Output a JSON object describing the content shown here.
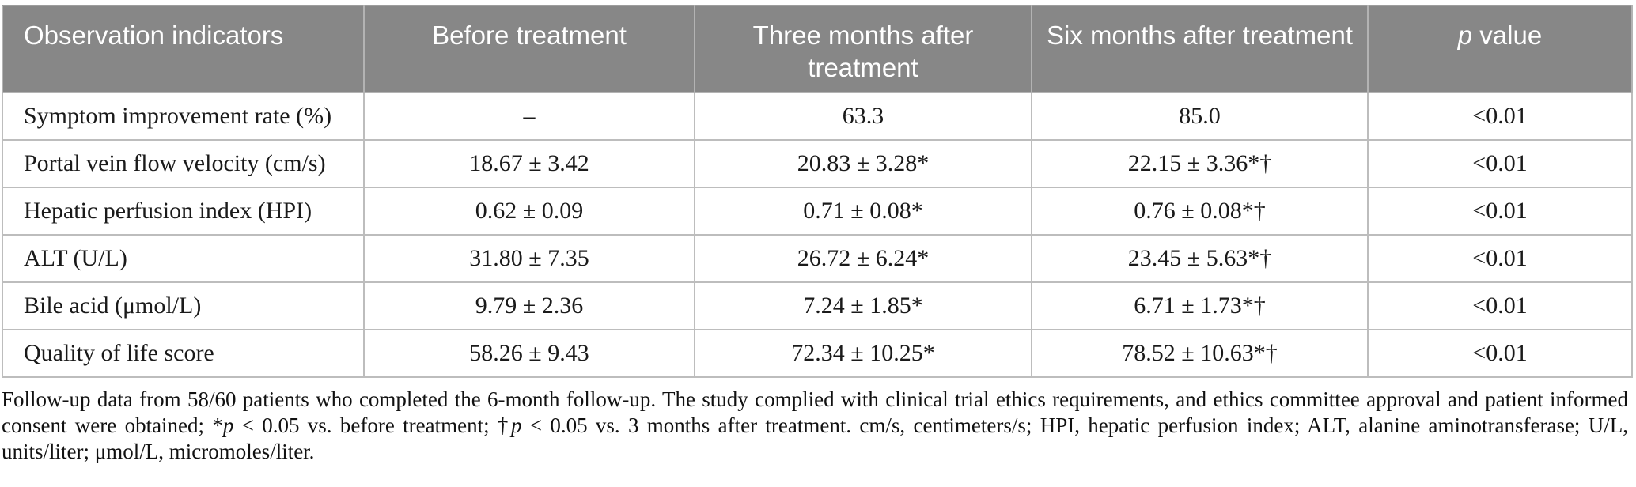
{
  "table": {
    "columns": [
      "Observation indicators",
      "Before treatment",
      "Three months after treatment",
      "Six months after treatment"
    ],
    "p_header": {
      "italic": "p",
      "rest": " value"
    },
    "rows": [
      {
        "cells": [
          "Symptom improvement rate (%)",
          "–",
          "63.3",
          "85.0",
          "<0.01"
        ]
      },
      {
        "cells": [
          "Portal vein flow velocity (cm/s)",
          "18.67 ± 3.42",
          "20.83 ± 3.28*",
          "22.15 ± 3.36*†",
          "<0.01"
        ]
      },
      {
        "cells": [
          "Hepatic perfusion index (HPI)",
          "0.62 ± 0.09",
          "0.71 ± 0.08*",
          "0.76 ± 0.08*†",
          "<0.01"
        ]
      },
      {
        "cells": [
          "ALT (U/L)",
          "31.80 ± 7.35",
          "26.72 ± 6.24*",
          "23.45 ± 5.63*†",
          "<0.01"
        ]
      },
      {
        "cells": [
          "Bile acid (μmol/L)",
          "9.79 ± 2.36",
          "7.24 ± 1.85*",
          "6.71 ± 1.73*†",
          "<0.01"
        ]
      },
      {
        "cells": [
          "Quality of life score",
          "58.26 ± 9.43",
          "72.34 ± 10.25*",
          "78.52 ± 10.63*†",
          "<0.01"
        ]
      }
    ]
  },
  "footnote": {
    "part1": "Follow-up data from 58/60 patients who completed the 6-month follow-up. The study complied with clinical trial ethics requirements, and ethics committee approval and patient informed consent were obtained; *",
    "p1": "p",
    "part2": " < 0.05 vs. before treatment; †",
    "p2": "p",
    "part3": " < 0.05 vs. 3 months after treatment. cm/s, centimeters/s; HPI, hepatic perfusion index; ALT, alanine aminotransferase; U/L, units/liter; μmol/L, micromoles/liter."
  },
  "colors": {
    "header_bg": "#878787",
    "header_text": "#ffffff",
    "header_divider": "#b3b3b3",
    "body_border": "#bdbdbd"
  }
}
